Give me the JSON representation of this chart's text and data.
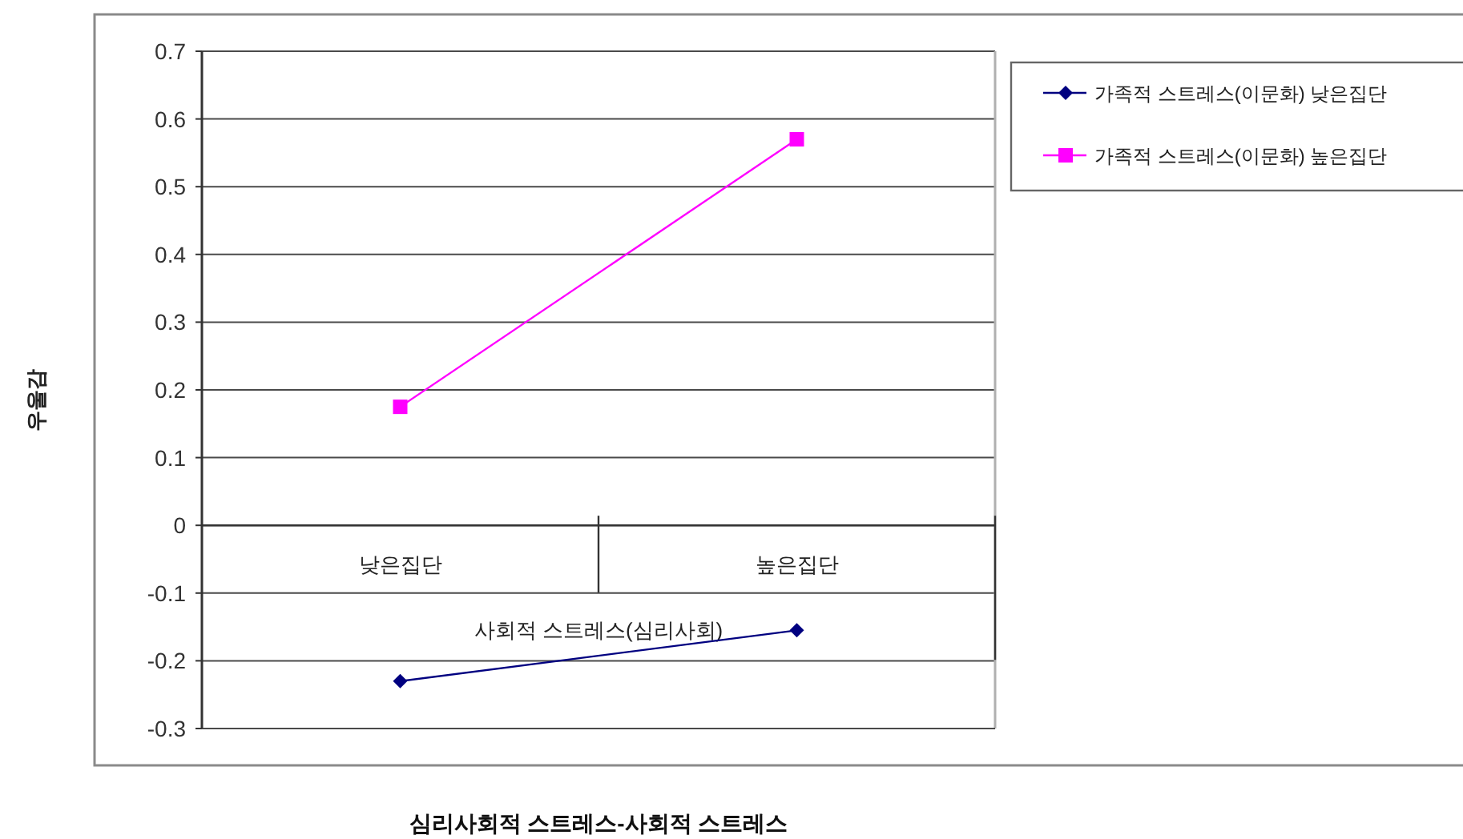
{
  "chart_data": {
    "type": "line",
    "categories": [
      "낮은집단",
      "높은집단"
    ],
    "series": [
      {
        "name": "가족적 스트레스(이문화) 낮은집단",
        "color": "#000080",
        "marker": "diamond",
        "values": [
          -0.23,
          -0.155
        ]
      },
      {
        "name": "가족적 스트레스(이문화) 높은집단",
        "color": "#ff00ff",
        "marker": "square",
        "values": [
          0.175,
          0.57
        ]
      }
    ],
    "ylim": [
      -0.3,
      0.7
    ],
    "yticks": [
      -0.3,
      -0.2,
      -0.1,
      0,
      0.1,
      0.2,
      0.3,
      0.4,
      0.5,
      0.6,
      0.7
    ],
    "ylabel": "우울감",
    "xlabel": "사회적 스트레스(심리사회)",
    "annotations": [
      "심리사회적 스트레스-사회적 스트레스"
    ],
    "grid": "y",
    "legend": "top right"
  }
}
